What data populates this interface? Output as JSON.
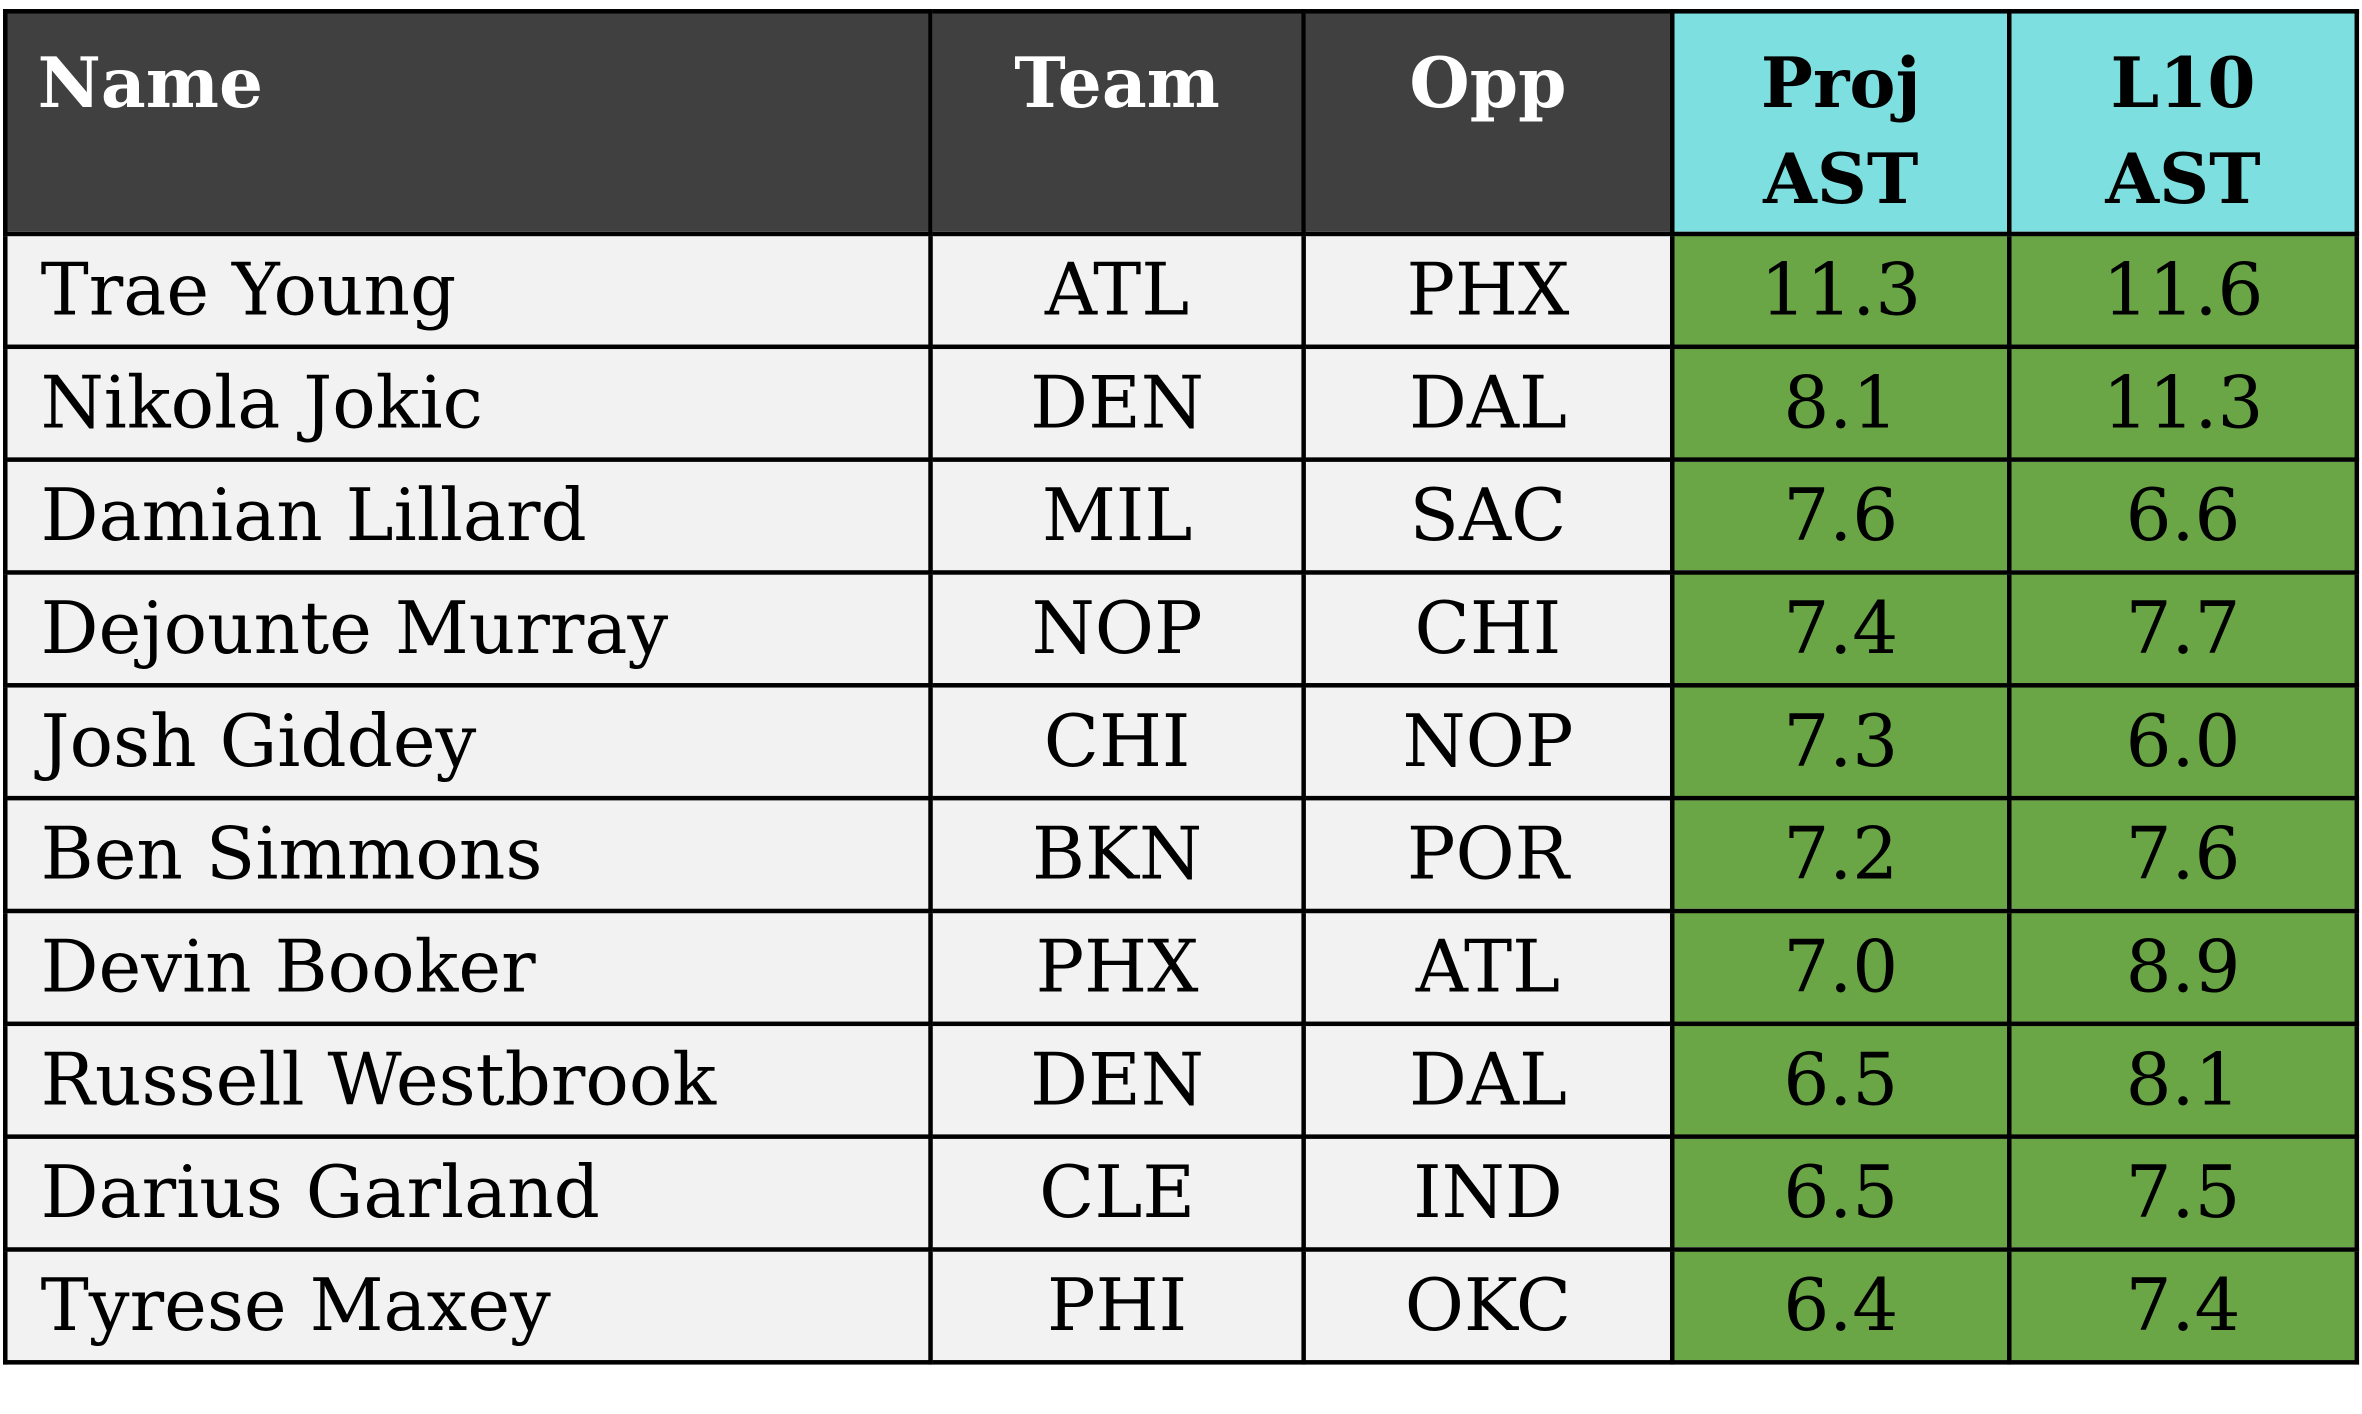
{
  "table": {
    "headers": {
      "name": "Name",
      "team": "Team",
      "opp": "Opp",
      "proj_ast": [
        "Proj",
        "AST"
      ],
      "l10_ast": [
        "L10",
        "AST"
      ]
    },
    "colors": {
      "header_dark": "#404040",
      "header_highlight": "#7ddfdf",
      "body_cell": "#f2f2f2",
      "value_cell": "#6aa645",
      "border": "#000000"
    },
    "rows": [
      {
        "name": "Trae Young",
        "team": "ATL",
        "opp": "PHX",
        "proj_ast": "11.3",
        "l10_ast": "11.6"
      },
      {
        "name": "Nikola Jokic",
        "team": "DEN",
        "opp": "DAL",
        "proj_ast": "8.1",
        "l10_ast": "11.3"
      },
      {
        "name": "Damian Lillard",
        "team": "MIL",
        "opp": "SAC",
        "proj_ast": "7.6",
        "l10_ast": "6.6"
      },
      {
        "name": "Dejounte Murray",
        "team": "NOP",
        "opp": "CHI",
        "proj_ast": "7.4",
        "l10_ast": "7.7"
      },
      {
        "name": "Josh Giddey",
        "team": "CHI",
        "opp": "NOP",
        "proj_ast": "7.3",
        "l10_ast": "6.0"
      },
      {
        "name": "Ben Simmons",
        "team": "BKN",
        "opp": "POR",
        "proj_ast": "7.2",
        "l10_ast": "7.6"
      },
      {
        "name": "Devin Booker",
        "team": "PHX",
        "opp": "ATL",
        "proj_ast": "7.0",
        "l10_ast": "8.9"
      },
      {
        "name": "Russell Westbrook",
        "team": "DEN",
        "opp": "DAL",
        "proj_ast": "6.5",
        "l10_ast": "8.1"
      },
      {
        "name": "Darius Garland",
        "team": "CLE",
        "opp": "IND",
        "proj_ast": "6.5",
        "l10_ast": "7.5"
      },
      {
        "name": "Tyrese Maxey",
        "team": "PHI",
        "opp": "OKC",
        "proj_ast": "6.4",
        "l10_ast": "7.4"
      }
    ]
  }
}
